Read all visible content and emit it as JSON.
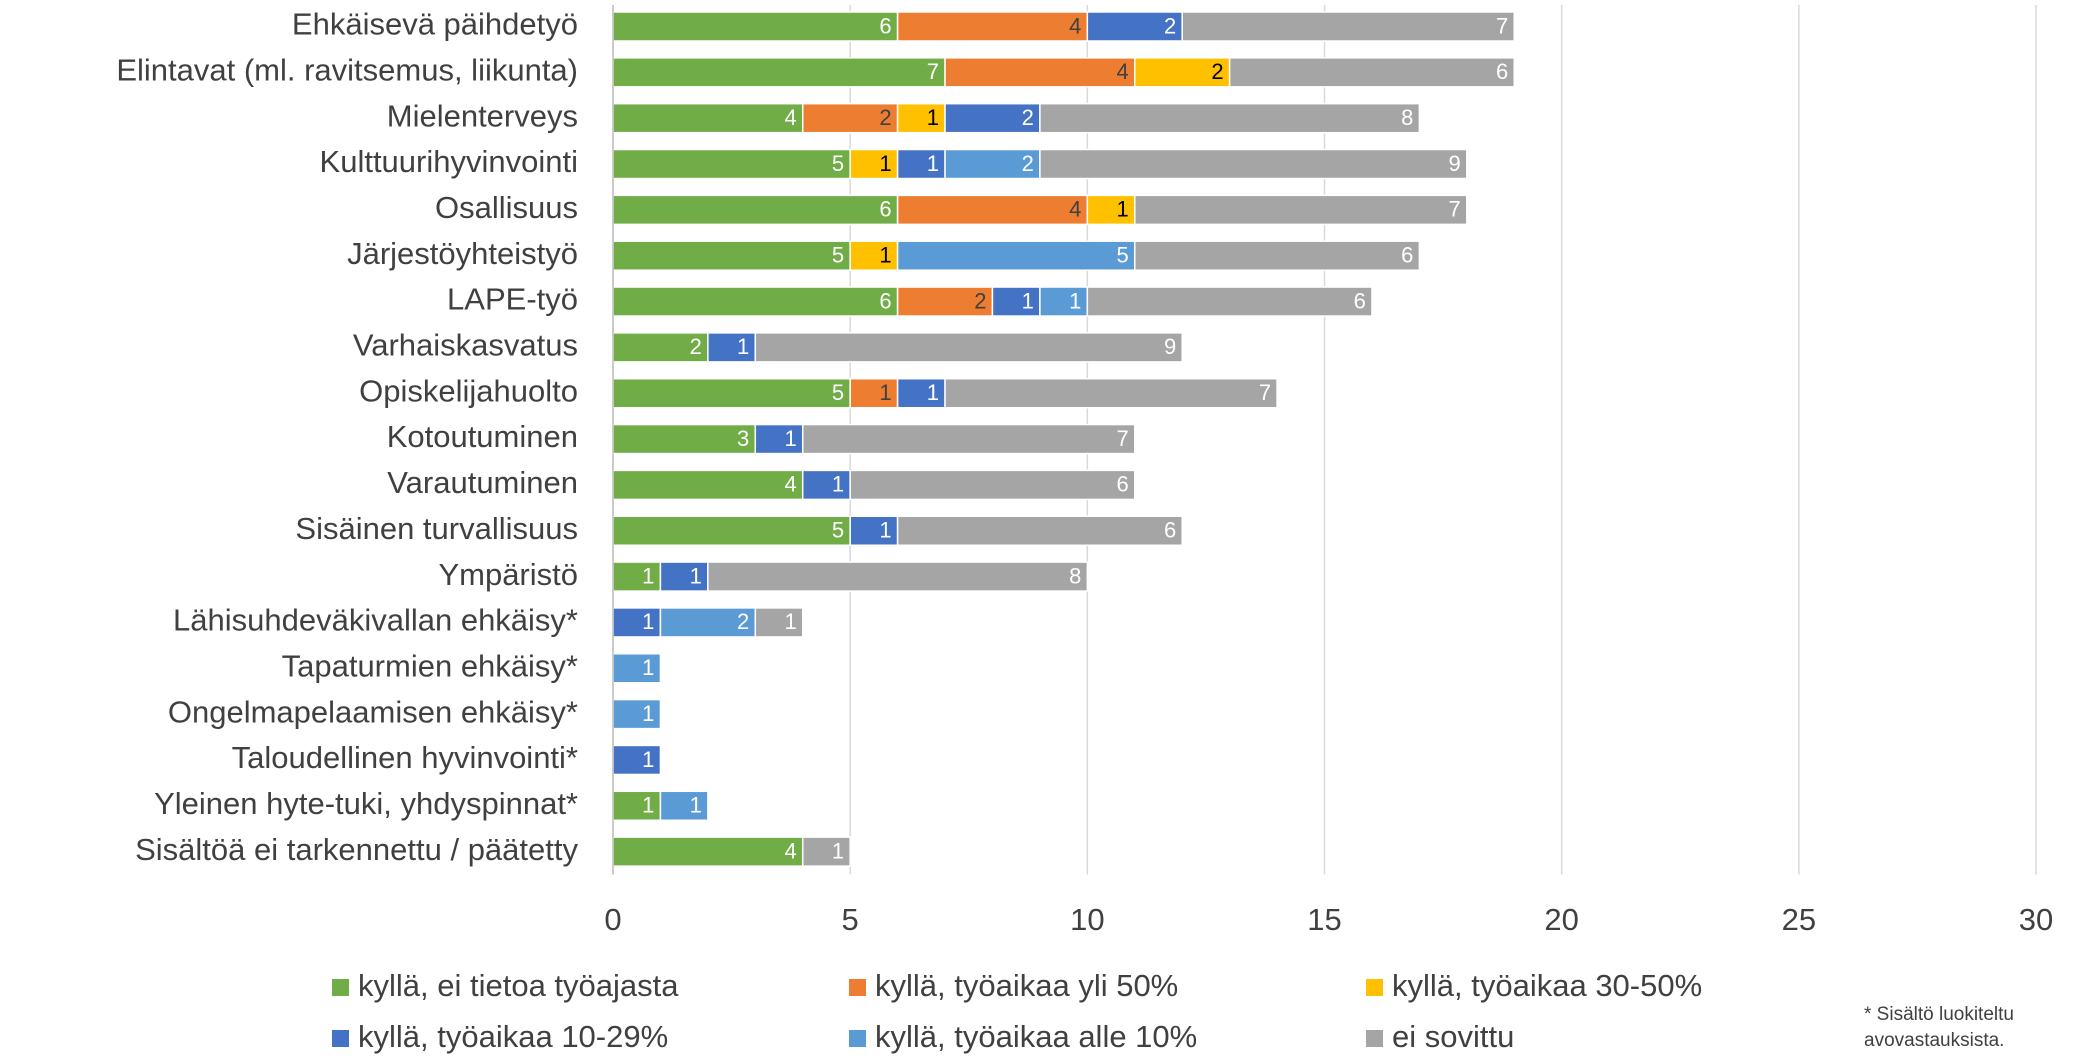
{
  "chart_data": {
    "type": "stacked_barh",
    "categories": [
      "Ehkäisevä päihdetyö",
      "Elintavat (ml. ravitsemus, liikunta)",
      "Mielenterveys",
      "Kulttuurihyvinvointi",
      "Osallisuus",
      "Järjestöyhteistyö",
      "LAPE-työ",
      "Varhaiskasvatus",
      "Opiskelijahuolto",
      "Kotoutuminen",
      "Varautuminen",
      "Sisäinen turvallisuus",
      "Ympäristö",
      "Lähisuhdeväkivallan ehkäisy*",
      "Tapaturmien ehkäisy*",
      "Ongelmapelaamisen ehkäisy*",
      "Taloudellinen hyvinvointi*",
      "Yleinen hyte-tuki, yhdyspinnat*",
      "Sisältöä ei tarkennettu / päätetty"
    ],
    "series": [
      {
        "name": "kyllä, ei tietoa työajasta",
        "color": "#70ad47",
        "label_color": "#ffffff",
        "values": [
          6,
          7,
          4,
          5,
          6,
          5,
          6,
          2,
          5,
          3,
          4,
          5,
          1,
          null,
          null,
          null,
          null,
          1,
          4
        ]
      },
      {
        "name": "kyllä, työaikaa yli 50%",
        "color": "#ed7d31",
        "label_color": "#404040",
        "values": [
          4,
          4,
          2,
          null,
          4,
          null,
          2,
          null,
          1,
          null,
          null,
          null,
          null,
          null,
          null,
          null,
          null,
          null,
          null
        ]
      },
      {
        "name": "kyllä, työaikaa 30-50%",
        "color": "#ffc000",
        "label_color": "#000000",
        "values": [
          null,
          2,
          1,
          1,
          1,
          1,
          null,
          null,
          null,
          null,
          null,
          null,
          null,
          null,
          null,
          null,
          null,
          null,
          null
        ]
      },
      {
        "name": "kyllä, työaikaa 10-29%",
        "color": "#4472c4",
        "label_color": "#ffffff",
        "values": [
          2,
          null,
          2,
          1,
          null,
          null,
          1,
          1,
          1,
          1,
          1,
          1,
          1,
          1,
          null,
          null,
          1,
          null,
          null
        ]
      },
      {
        "name": "kyllä, työaikaa alle 10%",
        "color": "#5b9bd5",
        "label_color": "#ffffff",
        "values": [
          null,
          null,
          null,
          2,
          null,
          5,
          1,
          null,
          null,
          null,
          null,
          null,
          null,
          2,
          1,
          1,
          null,
          1,
          null
        ]
      },
      {
        "name": "ei sovittu",
        "color": "#a5a5a5",
        "label_color": "#ffffff",
        "values": [
          7,
          6,
          8,
          9,
          7,
          6,
          6,
          9,
          7,
          7,
          6,
          6,
          8,
          1,
          null,
          null,
          null,
          null,
          1
        ]
      }
    ],
    "xlim": [
      0,
      30
    ],
    "xticks": [
      0,
      5,
      10,
      15,
      20,
      25,
      30
    ],
    "grid": true,
    "legend": "bottom",
    "annotation": [
      "* Sisältö luokiteltu",
      "avovastauksista."
    ]
  }
}
